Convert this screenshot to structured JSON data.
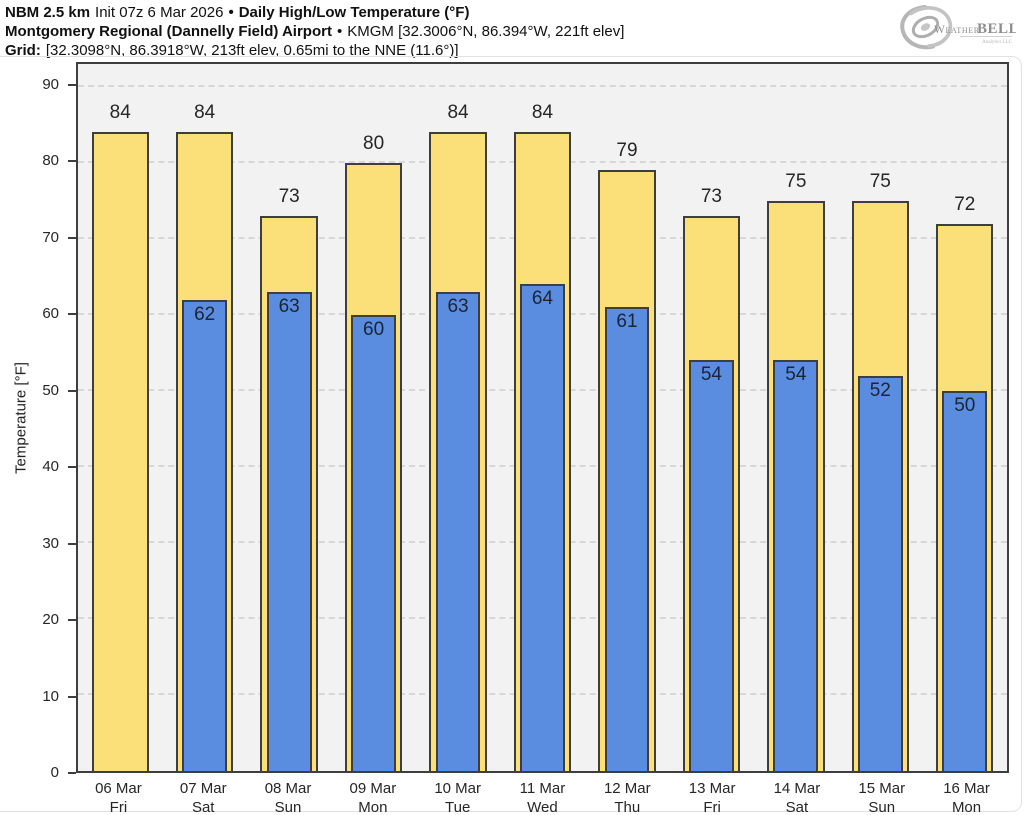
{
  "header": {
    "line1": {
      "model": "NBM 2.5 km",
      "init": "Init 07z 6 Mar 2026",
      "bullet": "•",
      "title": "Daily High/Low Temperature (°F)"
    },
    "line2": {
      "station": "Montgomery Regional (Dannelly Field) Airport",
      "bullet": "•",
      "station_meta": "KMGM [32.3006°N, 86.394°W, 221ft elev]"
    },
    "line3": {
      "label": "Grid:",
      "value": "[32.3098°N, 86.3918°W, 213ft elev, 0.65mi to the NNE (11.6°)]"
    }
  },
  "logo": {
    "weather": "Weather",
    "bell": "BELL",
    "subtext": "Analytics LLC"
  },
  "chart_data": {
    "type": "bar",
    "title": "Daily High/Low Temperature (°F)",
    "ylabel": "Temperature [°F]",
    "xlabel": "",
    "ylim": [
      0,
      93
    ],
    "yticks": [
      0,
      10,
      20,
      30,
      40,
      50,
      60,
      70,
      80,
      90
    ],
    "grid": "horizontal-dashed",
    "legend": "none",
    "categories": [
      {
        "date": "06 Mar",
        "day": "Fri"
      },
      {
        "date": "07 Mar",
        "day": "Sat"
      },
      {
        "date": "08 Mar",
        "day": "Sun"
      },
      {
        "date": "09 Mar",
        "day": "Mon"
      },
      {
        "date": "10 Mar",
        "day": "Tue"
      },
      {
        "date": "11 Mar",
        "day": "Wed"
      },
      {
        "date": "12 Mar",
        "day": "Thu"
      },
      {
        "date": "13 Mar",
        "day": "Fri"
      },
      {
        "date": "14 Mar",
        "day": "Sat"
      },
      {
        "date": "15 Mar",
        "day": "Sun"
      },
      {
        "date": "16 Mar",
        "day": "Mon"
      }
    ],
    "series": [
      {
        "name": "High",
        "color": "#fbdf79",
        "values": [
          84,
          84,
          73,
          80,
          84,
          84,
          79,
          73,
          75,
          75,
          72
        ]
      },
      {
        "name": "Low",
        "color": "#5a8ce0",
        "values": [
          null,
          62,
          63,
          60,
          63,
          64,
          61,
          54,
          54,
          52,
          50
        ]
      }
    ]
  },
  "colors": {
    "plot_background": "#f2f2f2",
    "bar_border": "#3e3e3e",
    "gridline": "#d7d7d7",
    "high_bar": "#fbdf79",
    "low_bar": "#5a8ce0",
    "logo_gray": "#a9a9a9"
  }
}
